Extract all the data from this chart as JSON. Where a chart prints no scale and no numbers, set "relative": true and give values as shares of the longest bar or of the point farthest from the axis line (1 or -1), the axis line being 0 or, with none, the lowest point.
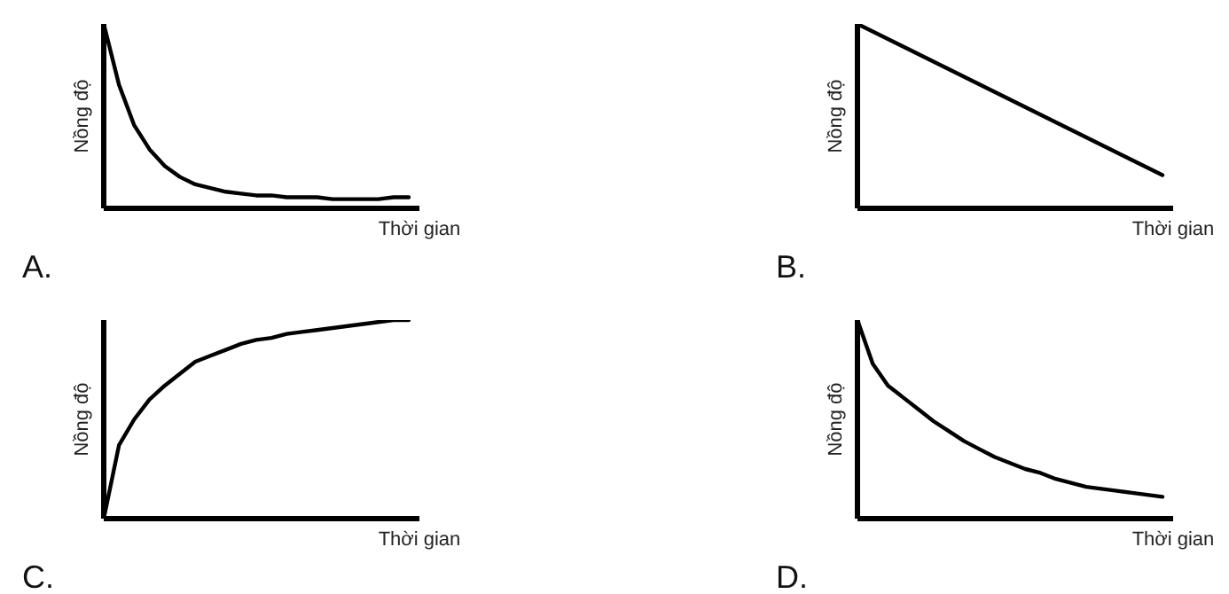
{
  "chart_data": [
    {
      "type": "line",
      "relative": true,
      "xlabel": "Thời gian",
      "ylabel": "Nồng độ",
      "annotations": [
        "A."
      ],
      "color": "#000000",
      "categories": [
        null,
        null,
        null,
        null,
        null,
        null,
        null,
        null,
        null,
        null,
        null,
        null,
        null,
        null,
        null,
        null,
        null,
        null,
        null,
        null,
        null
      ],
      "values": [
        1.0,
        0.67,
        0.45,
        0.32,
        0.23,
        0.17,
        0.13,
        0.11,
        0.09,
        0.08,
        0.07,
        0.07,
        0.06,
        0.06,
        0.06,
        0.05,
        0.05,
        0.05,
        0.05,
        0.06,
        0.06
      ]
    },
    {
      "type": "line",
      "relative": true,
      "xlabel": "Thời gian",
      "ylabel": "Nồng độ",
      "annotations": [
        "B."
      ],
      "color": "#000000",
      "categories": [
        null,
        null
      ],
      "values": [
        1.0,
        0.18
      ]
    },
    {
      "type": "line",
      "relative": true,
      "xlabel": "Thời gian",
      "ylabel": "Nồng độ",
      "annotations": [
        "C."
      ],
      "color": "#000000",
      "categories": [
        null,
        null,
        null,
        null,
        null,
        null,
        null,
        null,
        null,
        null,
        null,
        null,
        null,
        null,
        null,
        null,
        null,
        null,
        null,
        null,
        null
      ],
      "values": [
        0.0,
        0.37,
        0.5,
        0.6,
        0.67,
        0.73,
        0.79,
        0.82,
        0.85,
        0.88,
        0.9,
        0.91,
        0.93,
        0.94,
        0.95,
        0.96,
        0.97,
        0.98,
        0.99,
        1.0,
        1.0
      ]
    },
    {
      "type": "line",
      "relative": true,
      "xlabel": "Thời gian",
      "ylabel": "Nồng độ",
      "annotations": [
        "D."
      ],
      "color": "#000000",
      "categories": [
        null,
        null,
        null,
        null,
        null,
        null,
        null,
        null,
        null,
        null,
        null,
        null,
        null,
        null,
        null,
        null,
        null,
        null,
        null,
        null,
        null
      ],
      "values": [
        1.0,
        0.78,
        0.67,
        0.61,
        0.55,
        0.49,
        0.44,
        0.39,
        0.35,
        0.31,
        0.28,
        0.25,
        0.23,
        0.2,
        0.18,
        0.16,
        0.15,
        0.14,
        0.13,
        0.12,
        0.11
      ]
    }
  ]
}
